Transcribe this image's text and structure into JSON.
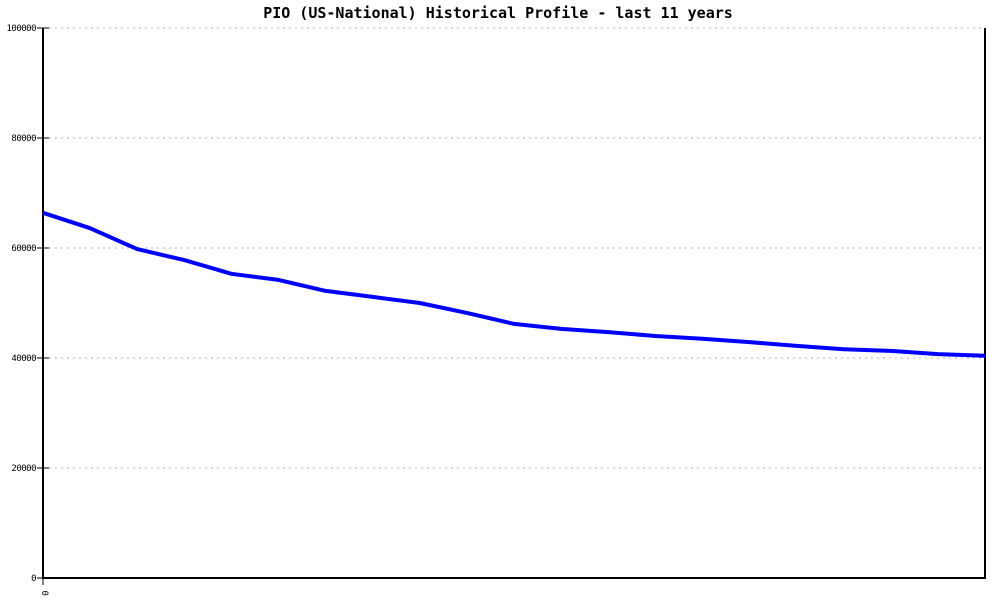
{
  "chart_data": {
    "type": "line",
    "title": "PIO (US-National) Historical Profile - last 11 years",
    "xlabel": "",
    "ylabel": "",
    "xlim_year_offset": [
      0,
      10
    ],
    "ylim": [
      0,
      100000
    ],
    "y_ticks": [
      0,
      20000,
      40000,
      60000,
      80000,
      100000
    ],
    "x_tick_labels": [
      "0"
    ],
    "grid": {
      "horizontal": true,
      "vertical": false,
      "style": "dotted"
    },
    "legend_position": "none",
    "colors": {
      "line": "#0000ff",
      "axis": "#000000",
      "grid": "#b0b0b0",
      "background": "#ffffff",
      "text": "#000000"
    },
    "series": [
      {
        "name": "PIO (US-National)",
        "x_year_offset": [
          0,
          0.5,
          1,
          1.5,
          2,
          2.5,
          3,
          3.5,
          4,
          4.5,
          5,
          5.5,
          6,
          6.5,
          7,
          7.5,
          8,
          8.5,
          9,
          9.5,
          10
        ],
        "values": [
          66400,
          63600,
          59800,
          57800,
          55300,
          54200,
          52200,
          51100,
          50000,
          48200,
          46200,
          45300,
          44700,
          44000,
          43500,
          42900,
          42200,
          41600,
          41300,
          40700,
          40400
        ]
      }
    ]
  }
}
